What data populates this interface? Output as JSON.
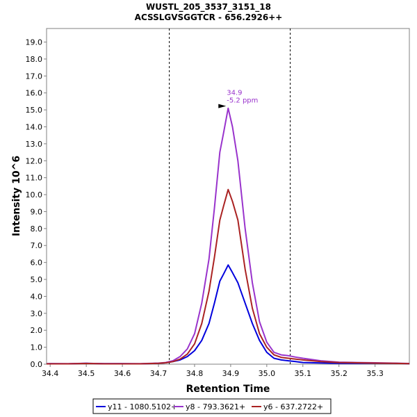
{
  "chart_data": {
    "type": "line",
    "title": "WUSTL_205_3537_3151_18",
    "subtitle": "ACSSLGVSGGTCR - 656.2926++",
    "xlabel": "Retention Time",
    "ylabel": "Intensity 10^6",
    "xlim": [
      34.39,
      35.395
    ],
    "ylim": [
      0,
      19.8
    ],
    "x_ticks": [
      34.4,
      34.5,
      34.6,
      34.7,
      34.8,
      34.9,
      35.0,
      35.1,
      35.2,
      35.3
    ],
    "y_ticks": [
      0.0,
      1.0,
      2.0,
      3.0,
      4.0,
      5.0,
      6.0,
      7.0,
      8.0,
      9.0,
      10.0,
      11.0,
      12.0,
      13.0,
      14.0,
      15.0,
      16.0,
      17.0,
      18.0,
      19.0
    ],
    "grid": false,
    "legend_position": "bottom",
    "boundaries": [
      34.73,
      35.065
    ],
    "annotation": {
      "x": 34.893,
      "y": 15.1,
      "label_rt": "34.9",
      "label_ppm": "-5.2 ppm"
    },
    "series": [
      {
        "name": "y11 - 1080.5102+",
        "color": "#0000dd",
        "x": [
          34.39,
          34.4,
          34.45,
          34.5,
          34.55,
          34.6,
          34.65,
          34.7,
          34.72,
          34.74,
          34.76,
          34.78,
          34.8,
          34.82,
          34.84,
          34.855,
          34.87,
          34.88,
          34.893,
          34.905,
          34.92,
          34.94,
          34.96,
          34.98,
          35.0,
          35.02,
          35.04,
          35.06,
          35.08,
          35.1,
          35.15,
          35.2,
          35.25,
          35.3,
          35.35,
          35.395
        ],
        "y": [
          0.02,
          0.03,
          0.02,
          0.05,
          0.03,
          0.03,
          0.02,
          0.05,
          0.08,
          0.15,
          0.25,
          0.45,
          0.8,
          1.4,
          2.4,
          3.6,
          4.9,
          5.3,
          5.85,
          5.4,
          4.8,
          3.6,
          2.4,
          1.4,
          0.7,
          0.35,
          0.25,
          0.2,
          0.15,
          0.1,
          0.07,
          0.05,
          0.05,
          0.05,
          0.05,
          0.03
        ]
      },
      {
        "name": "y8 - 793.3621+",
        "color": "#9933cc",
        "x": [
          34.39,
          34.4,
          34.45,
          34.5,
          34.55,
          34.6,
          34.65,
          34.7,
          34.72,
          34.74,
          34.76,
          34.78,
          34.8,
          34.82,
          34.84,
          34.855,
          34.87,
          34.88,
          34.893,
          34.905,
          34.92,
          34.94,
          34.96,
          34.98,
          35.0,
          35.02,
          35.04,
          35.06,
          35.08,
          35.1,
          35.15,
          35.2,
          35.25,
          35.3,
          35.35,
          35.395
        ],
        "y": [
          0.03,
          0.03,
          0.03,
          0.05,
          0.03,
          0.03,
          0.03,
          0.06,
          0.1,
          0.2,
          0.45,
          0.9,
          1.8,
          3.6,
          6.2,
          9.2,
          12.5,
          13.6,
          15.1,
          14.0,
          12.0,
          8.0,
          4.8,
          2.5,
          1.3,
          0.7,
          0.55,
          0.5,
          0.42,
          0.35,
          0.2,
          0.12,
          0.1,
          0.08,
          0.06,
          0.04
        ]
      },
      {
        "name": "y6 - 637.2722+",
        "color": "#aa2222",
        "x": [
          34.39,
          34.4,
          34.45,
          34.5,
          34.55,
          34.6,
          34.65,
          34.7,
          34.72,
          34.74,
          34.76,
          34.78,
          34.8,
          34.82,
          34.84,
          34.855,
          34.87,
          34.88,
          34.893,
          34.905,
          34.92,
          34.94,
          34.96,
          34.98,
          35.0,
          35.02,
          35.04,
          35.06,
          35.08,
          35.1,
          35.15,
          35.2,
          35.25,
          35.3,
          35.35,
          35.395
        ],
        "y": [
          0.02,
          0.02,
          0.02,
          0.04,
          0.02,
          0.02,
          0.02,
          0.05,
          0.08,
          0.15,
          0.3,
          0.6,
          1.2,
          2.4,
          4.3,
          6.3,
          8.5,
          9.3,
          10.3,
          9.6,
          8.5,
          5.6,
          3.3,
          1.8,
          1.0,
          0.55,
          0.4,
          0.35,
          0.3,
          0.25,
          0.15,
          0.1,
          0.08,
          0.06,
          0.05,
          0.03
        ]
      }
    ]
  }
}
